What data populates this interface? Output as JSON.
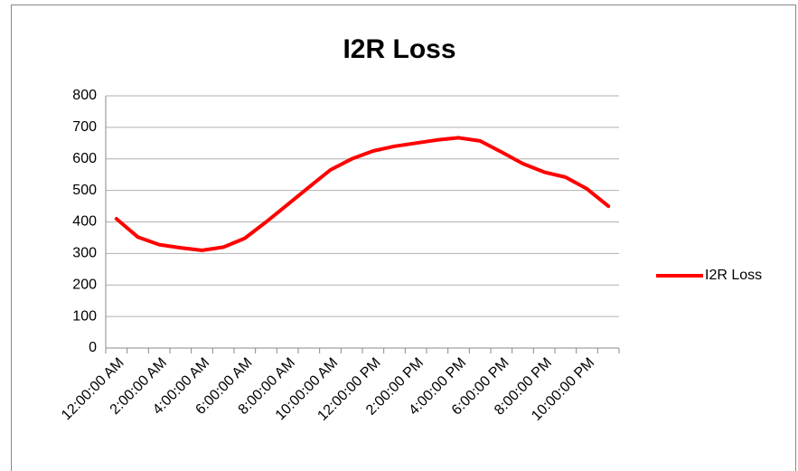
{
  "chart_data": {
    "type": "line",
    "title": "I2R Loss",
    "categories": [
      "12:00:00 AM",
      null,
      "2:00:00 AM",
      null,
      "4:00:00 AM",
      null,
      "6:00:00 AM",
      null,
      "8:00:00 AM",
      null,
      "10:00:00 AM",
      null,
      "12:00:00 PM",
      null,
      "2:00:00 PM",
      null,
      "4:00:00 PM",
      null,
      "6:00:00 PM",
      null,
      "8:00:00 PM",
      null,
      "10:00:00 PM",
      null
    ],
    "series": [
      {
        "name": "I2R Loss",
        "color": "#ff0000",
        "values": [
          410,
          352,
          328,
          318,
          310,
          320,
          348,
          400,
          455,
          510,
          565,
          600,
          625,
          640,
          650,
          660,
          667,
          657,
          622,
          585,
          558,
          542,
          505,
          450
        ]
      }
    ],
    "ylim": [
      0,
      800
    ],
    "yticks": [
      0,
      100,
      200,
      300,
      400,
      500,
      600,
      700,
      800
    ],
    "grid": true,
    "legend": "right"
  }
}
